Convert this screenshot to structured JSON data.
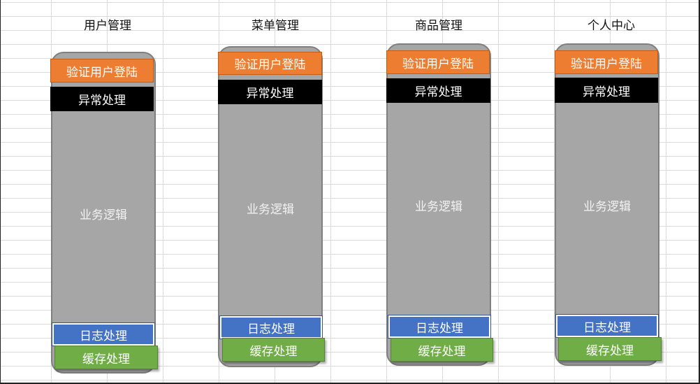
{
  "columns": [
    {
      "title": "用户管理",
      "auth": "验证用户登陆",
      "exception": "异常处理",
      "business": "业务逻辑",
      "log": "日志处理",
      "cache": "缓存处理"
    },
    {
      "title": "菜单管理",
      "auth": "验证用户登陆",
      "exception": "异常处理",
      "business": "业务逻辑",
      "log": "日志处理",
      "cache": "缓存处理"
    },
    {
      "title": "商品管理",
      "auth": "验证用户登陆",
      "exception": "异常处理",
      "business": "业务逻辑",
      "log": "日志处理",
      "cache": "缓存处理"
    },
    {
      "title": "个人中心",
      "auth": "验证用户登陆",
      "exception": "异常处理",
      "business": "业务逻辑",
      "log": "日志处理",
      "cache": "缓存处理"
    }
  ],
  "colors": {
    "auth": "#ed7d31",
    "exception": "#000000",
    "business": "#a6a6a6",
    "log": "#4472c4",
    "cache": "#70ad47"
  }
}
